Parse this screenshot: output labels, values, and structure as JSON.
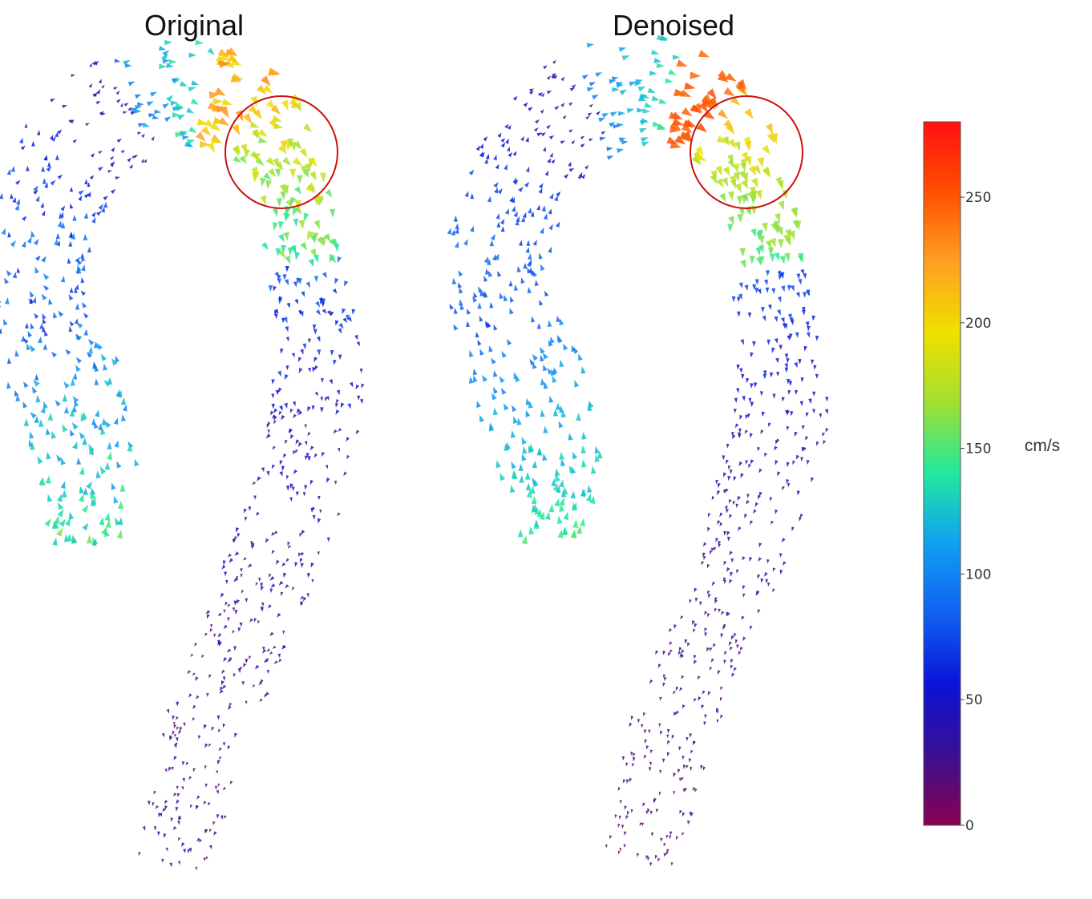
{
  "chart_data": [
    {
      "type": "3d-vector-field",
      "title": "Original",
      "highlight": {
        "shape": "circle",
        "color": "#cc1111"
      },
      "colorbar": {
        "title": "cm/s",
        "range": [
          0,
          280
        ]
      }
    },
    {
      "type": "3d-vector-field",
      "title": "Denoised",
      "highlight": {
        "shape": "circle",
        "color": "#cc1111"
      },
      "colorbar": {
        "title": "cm/s",
        "range": [
          0,
          280
        ]
      }
    }
  ],
  "colorbar": {
    "title": "cm/s",
    "range": [
      0,
      280
    ],
    "ticks": [
      0,
      50,
      100,
      150,
      200,
      250
    ],
    "tick_labels": [
      "0",
      "50",
      "100",
      "150",
      "200",
      "250"
    ],
    "colorscale": [
      "#8a0050",
      "#3a1090",
      "#0b12d8",
      "#1060f0",
      "#10a0f0",
      "#20e8a0",
      "#a0e030",
      "#f0e000",
      "#ffa020",
      "#ff5000",
      "#ff1010"
    ]
  }
}
